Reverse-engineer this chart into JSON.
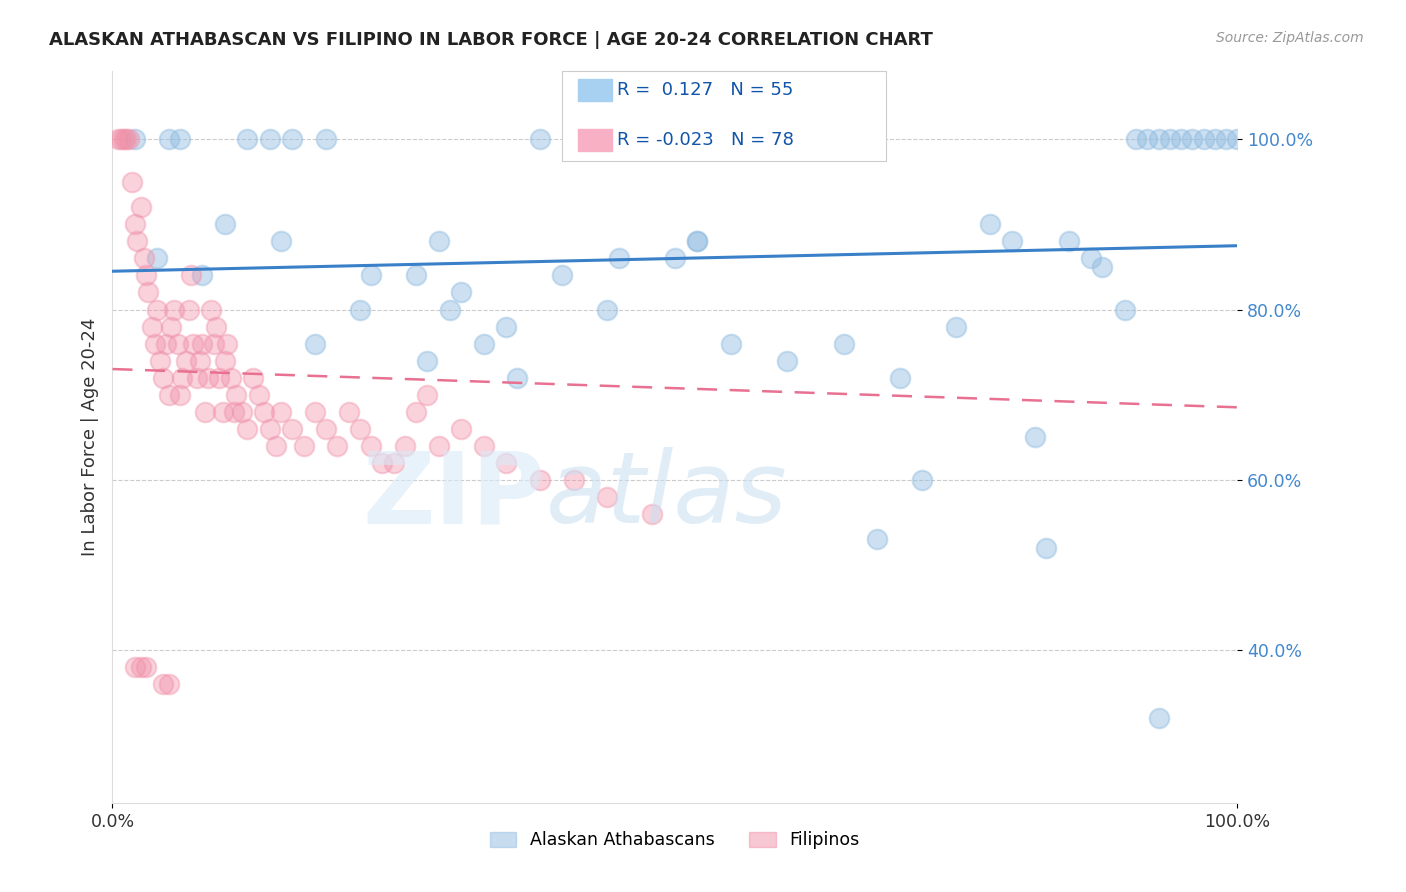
{
  "title": "ALASKAN ATHABASCAN VS FILIPINO IN LABOR FORCE | AGE 20-24 CORRELATION CHART",
  "source": "Source: ZipAtlas.com",
  "ylabel": "In Labor Force | Age 20-24",
  "xlim": [
    0.0,
    1.0
  ],
  "ylim": [
    0.22,
    1.08
  ],
  "yticks": [
    0.4,
    0.6,
    0.8,
    1.0
  ],
  "ytick_labels": [
    "40.0%",
    "60.0%",
    "80.0%",
    "100.0%"
  ],
  "xticks": [
    0.0,
    1.0
  ],
  "xtick_labels": [
    "0.0%",
    "100.0%"
  ],
  "blue_color": "#90bce0",
  "pink_color": "#f090a8",
  "blue_line_color": "#3a80c8",
  "pink_line_color": "#e87090",
  "blue_line": [
    0.0,
    1.0,
    0.845,
    0.875
  ],
  "pink_line": [
    0.0,
    1.0,
    0.73,
    0.685
  ],
  "blue_legend_color": "#a8d0f0",
  "pink_legend_color": "#f8b0c4",
  "blue_points_x": [
    0.04,
    0.08,
    0.1,
    0.15,
    0.18,
    0.22,
    0.27,
    0.3,
    0.35,
    0.4,
    0.44,
    0.5,
    0.55,
    0.6,
    0.65,
    0.7,
    0.75,
    0.78,
    0.8,
    0.82,
    0.85,
    0.87,
    0.88,
    0.9,
    0.91,
    0.92,
    0.93,
    0.94,
    0.95,
    0.96,
    0.97,
    0.98,
    0.99,
    1.0,
    0.02,
    0.05,
    0.06,
    0.12,
    0.14,
    0.16,
    0.19,
    0.23,
    0.31,
    0.38,
    0.45,
    0.52,
    0.68,
    0.83,
    0.28,
    0.72,
    0.29,
    0.33,
    0.36,
    0.52,
    0.93
  ],
  "blue_points_y": [
    0.86,
    0.84,
    0.9,
    0.88,
    0.76,
    0.8,
    0.84,
    0.8,
    0.78,
    0.84,
    0.8,
    0.86,
    0.76,
    0.74,
    0.76,
    0.72,
    0.78,
    0.9,
    0.88,
    0.65,
    0.88,
    0.86,
    0.85,
    0.8,
    1.0,
    1.0,
    1.0,
    1.0,
    1.0,
    1.0,
    1.0,
    1.0,
    1.0,
    1.0,
    1.0,
    1.0,
    1.0,
    1.0,
    1.0,
    1.0,
    1.0,
    0.84,
    0.82,
    1.0,
    0.86,
    0.88,
    0.53,
    0.52,
    0.74,
    0.6,
    0.88,
    0.76,
    0.72,
    0.88,
    0.32
  ],
  "pink_points_x": [
    0.005,
    0.008,
    0.01,
    0.012,
    0.015,
    0.017,
    0.02,
    0.022,
    0.025,
    0.028,
    0.03,
    0.032,
    0.035,
    0.038,
    0.04,
    0.042,
    0.045,
    0.048,
    0.05,
    0.052,
    0.055,
    0.058,
    0.06,
    0.062,
    0.065,
    0.068,
    0.07,
    0.072,
    0.075,
    0.078,
    0.08,
    0.082,
    0.085,
    0.088,
    0.09,
    0.092,
    0.095,
    0.098,
    0.1,
    0.102,
    0.105,
    0.108,
    0.11,
    0.115,
    0.12,
    0.125,
    0.13,
    0.135,
    0.14,
    0.145,
    0.15,
    0.16,
    0.17,
    0.18,
    0.19,
    0.2,
    0.21,
    0.22,
    0.23,
    0.24,
    0.25,
    0.26,
    0.27,
    0.28,
    0.29,
    0.31,
    0.33,
    0.35,
    0.38,
    0.41,
    0.44,
    0.48,
    0.02,
    0.025,
    0.03,
    0.045,
    0.05
  ],
  "pink_points_y": [
    1.0,
    1.0,
    1.0,
    1.0,
    1.0,
    0.95,
    0.9,
    0.88,
    0.92,
    0.86,
    0.84,
    0.82,
    0.78,
    0.76,
    0.8,
    0.74,
    0.72,
    0.76,
    0.7,
    0.78,
    0.8,
    0.76,
    0.7,
    0.72,
    0.74,
    0.8,
    0.84,
    0.76,
    0.72,
    0.74,
    0.76,
    0.68,
    0.72,
    0.8,
    0.76,
    0.78,
    0.72,
    0.68,
    0.74,
    0.76,
    0.72,
    0.68,
    0.7,
    0.68,
    0.66,
    0.72,
    0.7,
    0.68,
    0.66,
    0.64,
    0.68,
    0.66,
    0.64,
    0.68,
    0.66,
    0.64,
    0.68,
    0.66,
    0.64,
    0.62,
    0.62,
    0.64,
    0.68,
    0.7,
    0.64,
    0.66,
    0.64,
    0.62,
    0.6,
    0.6,
    0.58,
    0.56,
    0.38,
    0.38,
    0.38,
    0.36,
    0.36
  ]
}
